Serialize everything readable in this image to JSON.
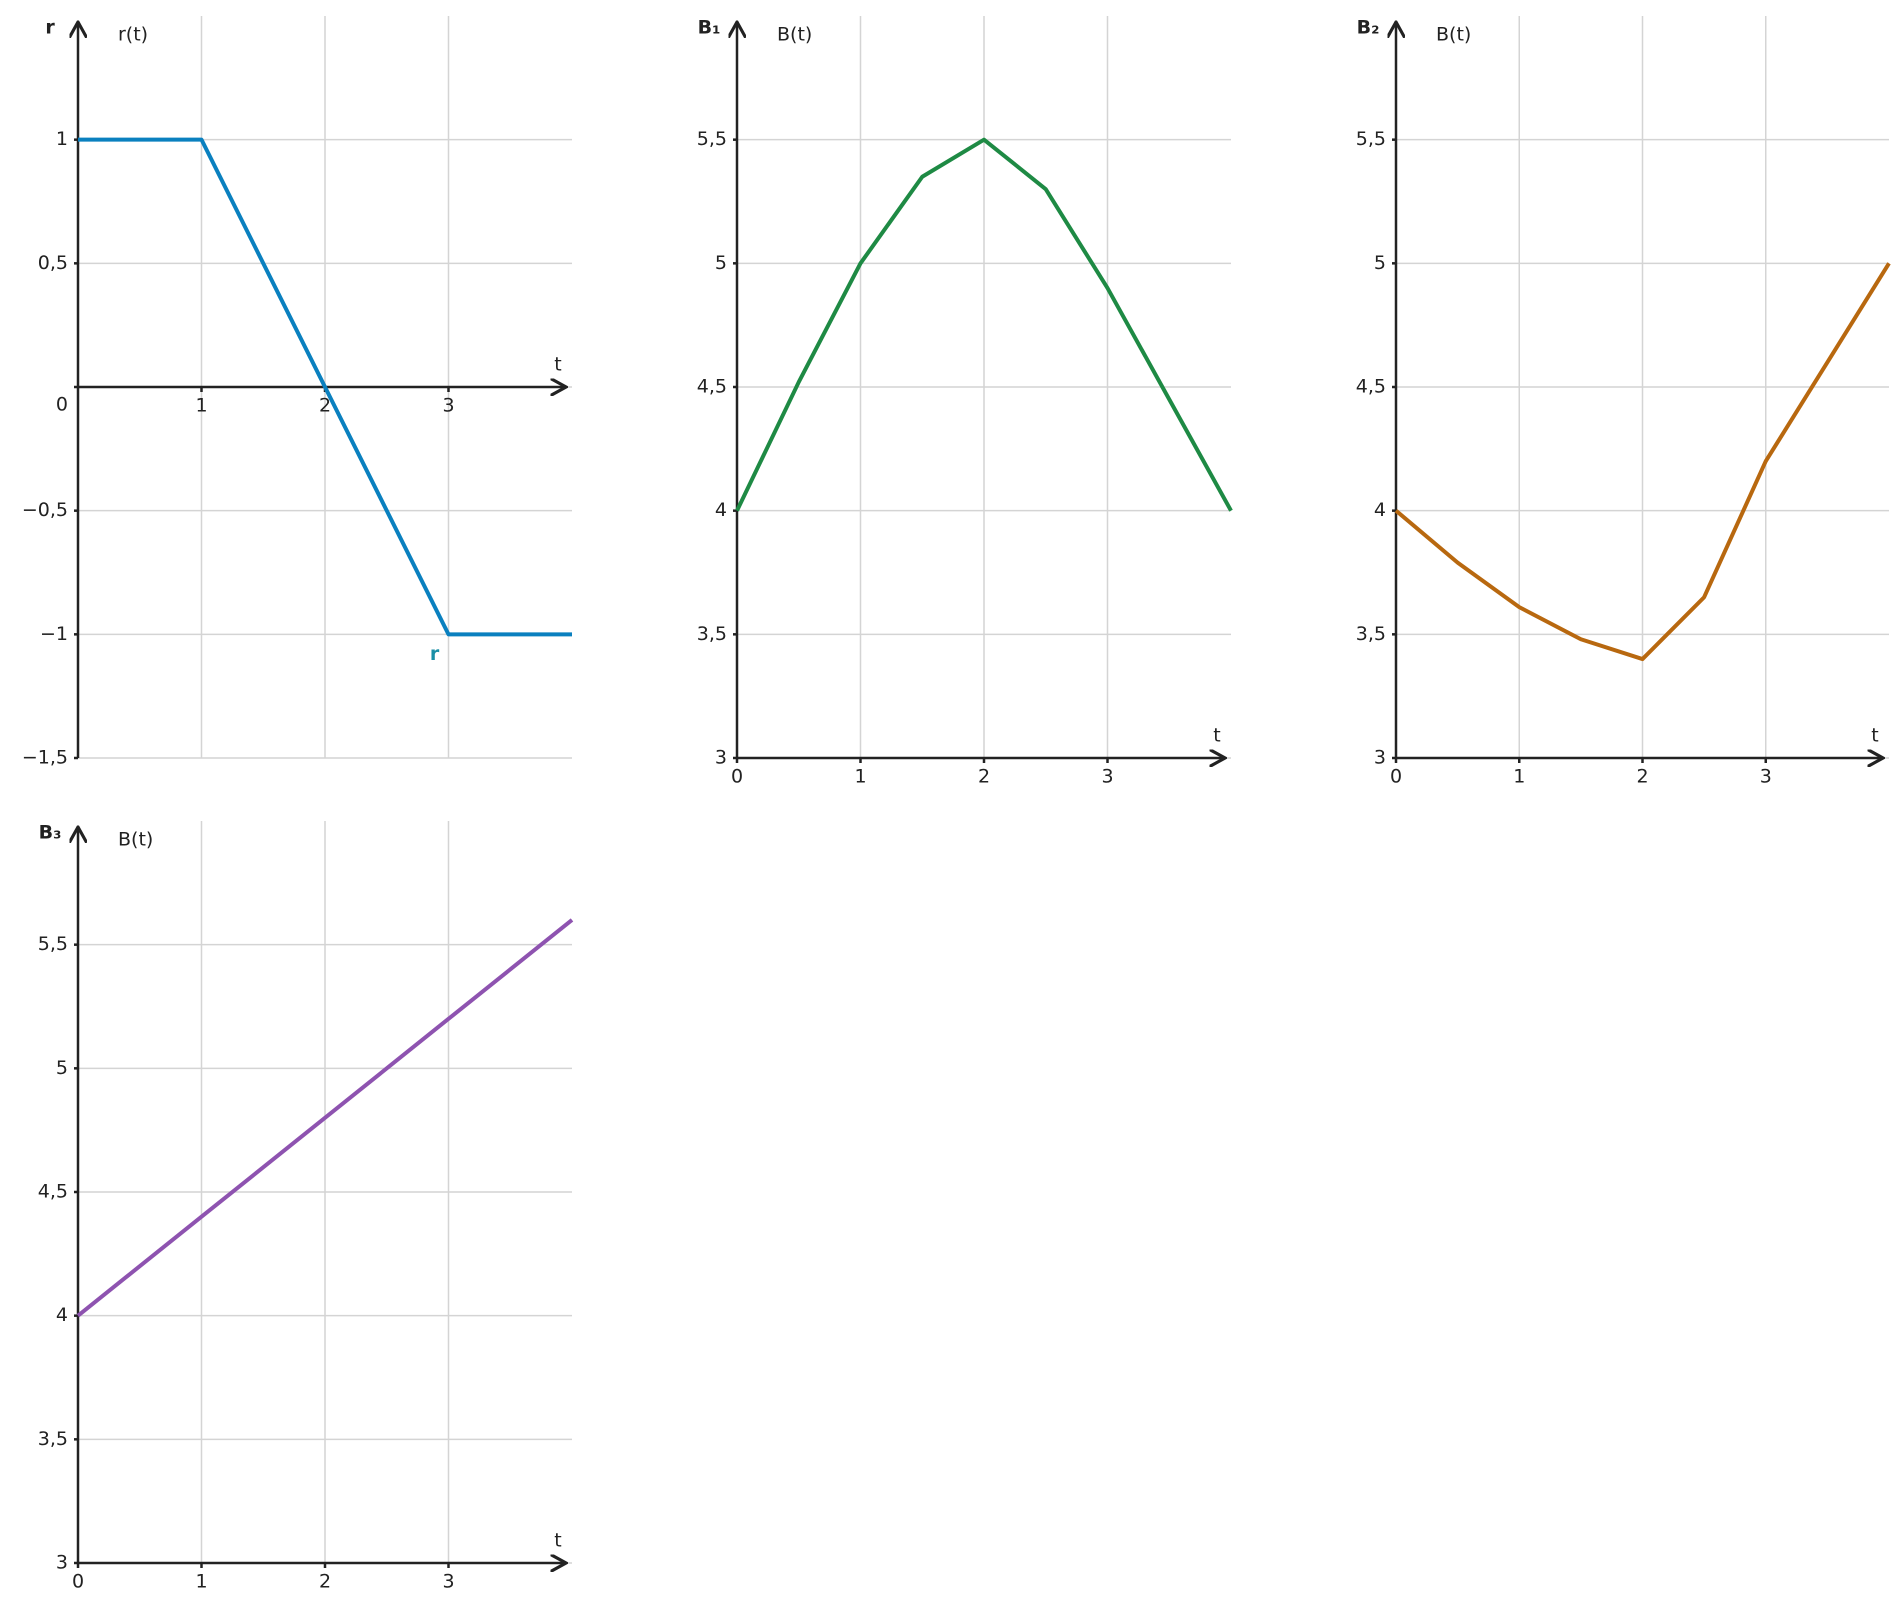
{
  "chart_data": [
    {
      "type": "line",
      "title": "r",
      "y_label": "r(t)",
      "x_label": "t",
      "annotation": "r",
      "annotation_color": "#1a8fa6",
      "x": [
        0,
        1,
        2,
        3,
        4
      ],
      "series": [
        {
          "color": "#0a80bf",
          "values": [
            1,
            1,
            0,
            -1,
            -1
          ]
        }
      ],
      "xlim": [
        0,
        4
      ],
      "xticks": [
        1,
        2,
        3
      ],
      "ylim": [
        -1.5,
        1.5
      ],
      "yticks": [
        {
          "value": -1.5,
          "label": "−1,5"
        },
        {
          "value": -1,
          "label": "−1"
        },
        {
          "value": -0.5,
          "label": "−0,5"
        },
        0,
        {
          "value": 0.5,
          "label": "0,5"
        },
        1
      ],
      "grid": true
    },
    {
      "type": "line",
      "title": "B₁",
      "y_label": "B(t)",
      "x_label": "t",
      "x": [
        0,
        0.5,
        1,
        1.5,
        2,
        2.5,
        3,
        3.5,
        4
      ],
      "series": [
        {
          "color": "#1e8a44",
          "values": [
            4,
            4.52,
            5,
            5.35,
            5.5,
            5.3,
            4.9,
            4.45,
            4
          ]
        }
      ],
      "xlim": [
        0,
        4
      ],
      "xticks": [
        0,
        1,
        2,
        3
      ],
      "ylim": [
        3,
        6
      ],
      "yticks": [
        3,
        {
          "value": 3.5,
          "label": "3,5"
        },
        4,
        {
          "value": 4.5,
          "label": "4,5"
        },
        5,
        {
          "value": 5.5,
          "label": "5,5"
        }
      ],
      "grid": true
    },
    {
      "type": "line",
      "title": "B₂",
      "y_label": "B(t)",
      "x_label": "t",
      "x": [
        0,
        0.5,
        1,
        1.5,
        2,
        2.5,
        3,
        3.5,
        4
      ],
      "series": [
        {
          "color": "#b8680f",
          "values": [
            4,
            3.79,
            3.61,
            3.48,
            3.4,
            3.65,
            4.2,
            4.6,
            5
          ]
        }
      ],
      "xlim": [
        0,
        4
      ],
      "xticks": [
        0,
        1,
        2,
        3
      ],
      "ylim": [
        3,
        6
      ],
      "yticks": [
        3,
        {
          "value": 3.5,
          "label": "3,5"
        },
        4,
        {
          "value": 4.5,
          "label": "4,5"
        },
        5,
        {
          "value": 5.5,
          "label": "5,5"
        }
      ],
      "grid": true
    },
    {
      "type": "line",
      "title": "B₃",
      "y_label": "B(t)",
      "x_label": "t",
      "x": [
        0,
        1,
        2,
        3,
        4
      ],
      "series": [
        {
          "color": "#8e53b0",
          "values": [
            4,
            4.4,
            4.8,
            5.2,
            5.6
          ]
        }
      ],
      "xlim": [
        0,
        4
      ],
      "xticks": [
        0,
        1,
        2,
        3
      ],
      "ylim": [
        3,
        6
      ],
      "yticks": [
        3,
        {
          "value": 3.5,
          "label": "3,5"
        },
        4,
        {
          "value": 4.5,
          "label": "4,5"
        },
        5,
        {
          "value": 5.5,
          "label": "5,5"
        }
      ],
      "grid": true
    }
  ]
}
